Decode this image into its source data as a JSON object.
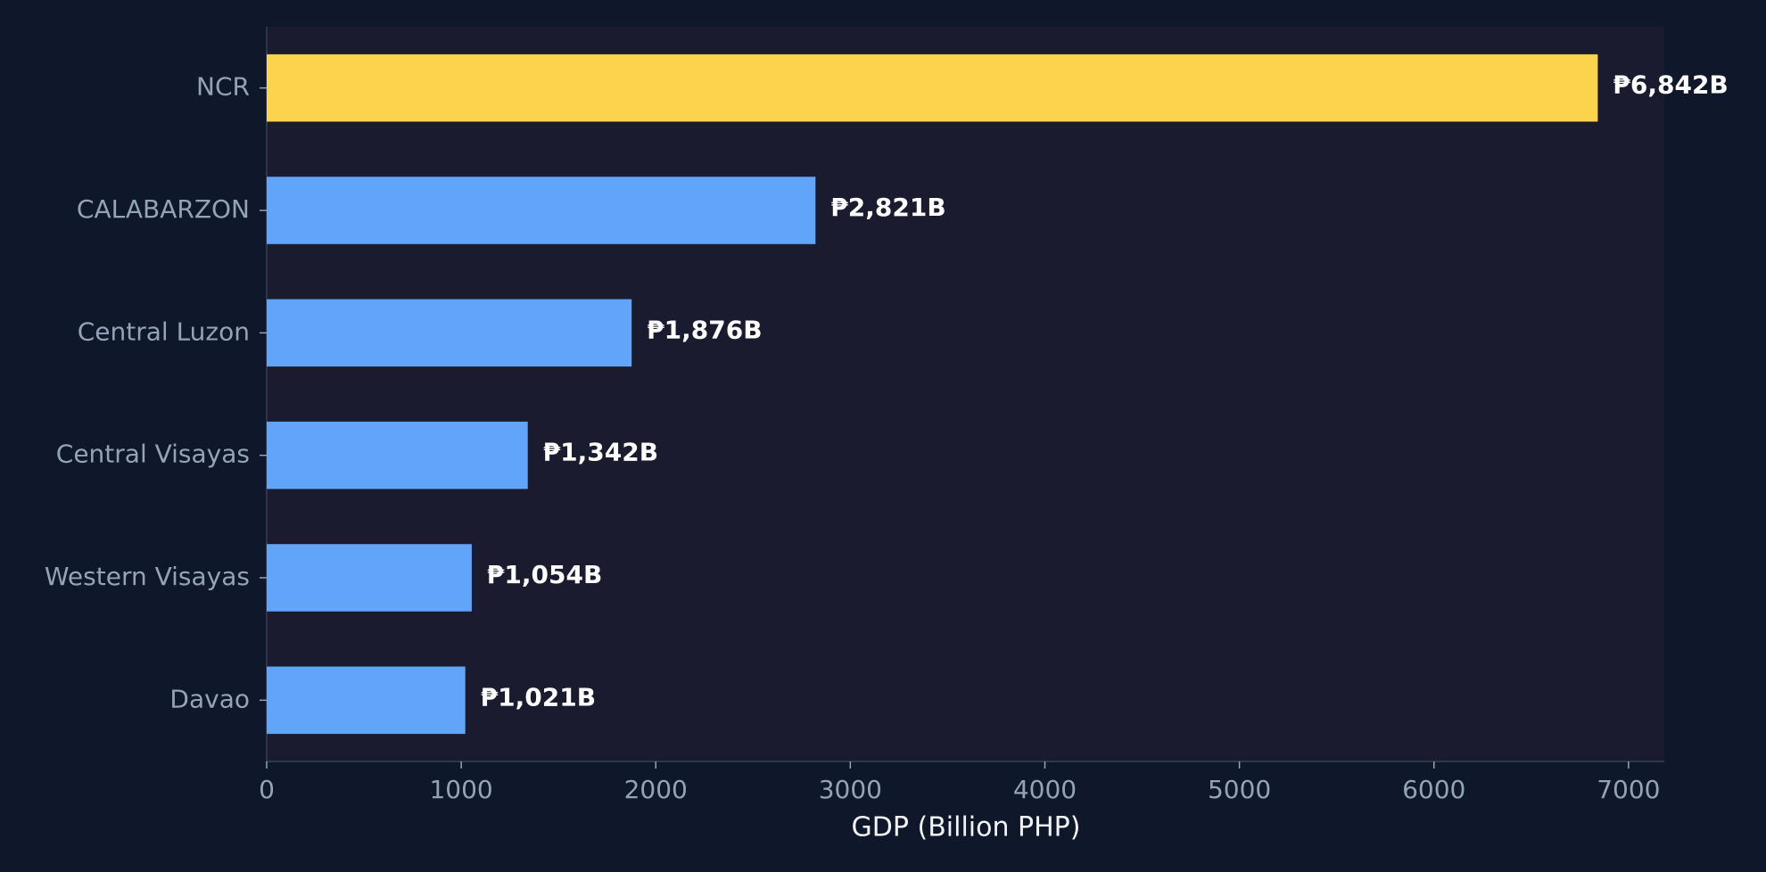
{
  "chart_data": {
    "type": "barh",
    "categories": [
      "NCR",
      "CALABARZON",
      "Central Luzon",
      "Central Visayas",
      "Western Visayas",
      "Davao"
    ],
    "values": [
      6842,
      2821,
      1876,
      1342,
      1054,
      1021
    ],
    "value_labels": [
      "₱6,842B",
      "₱2,821B",
      "₱1,876B",
      "₱1,342B",
      "₱1,054B",
      "₱1,021B"
    ],
    "colors": [
      "#fcd34d",
      "#60a5fa",
      "#60a5fa",
      "#60a5fa",
      "#60a5fa",
      "#60a5fa"
    ],
    "xlabel": "GDP (Billion PHP)",
    "xlim": [
      0,
      7184.1
    ],
    "xticks": [
      0,
      1000,
      2000,
      3000,
      4000,
      5000,
      6000,
      7000
    ],
    "grid": false
  }
}
